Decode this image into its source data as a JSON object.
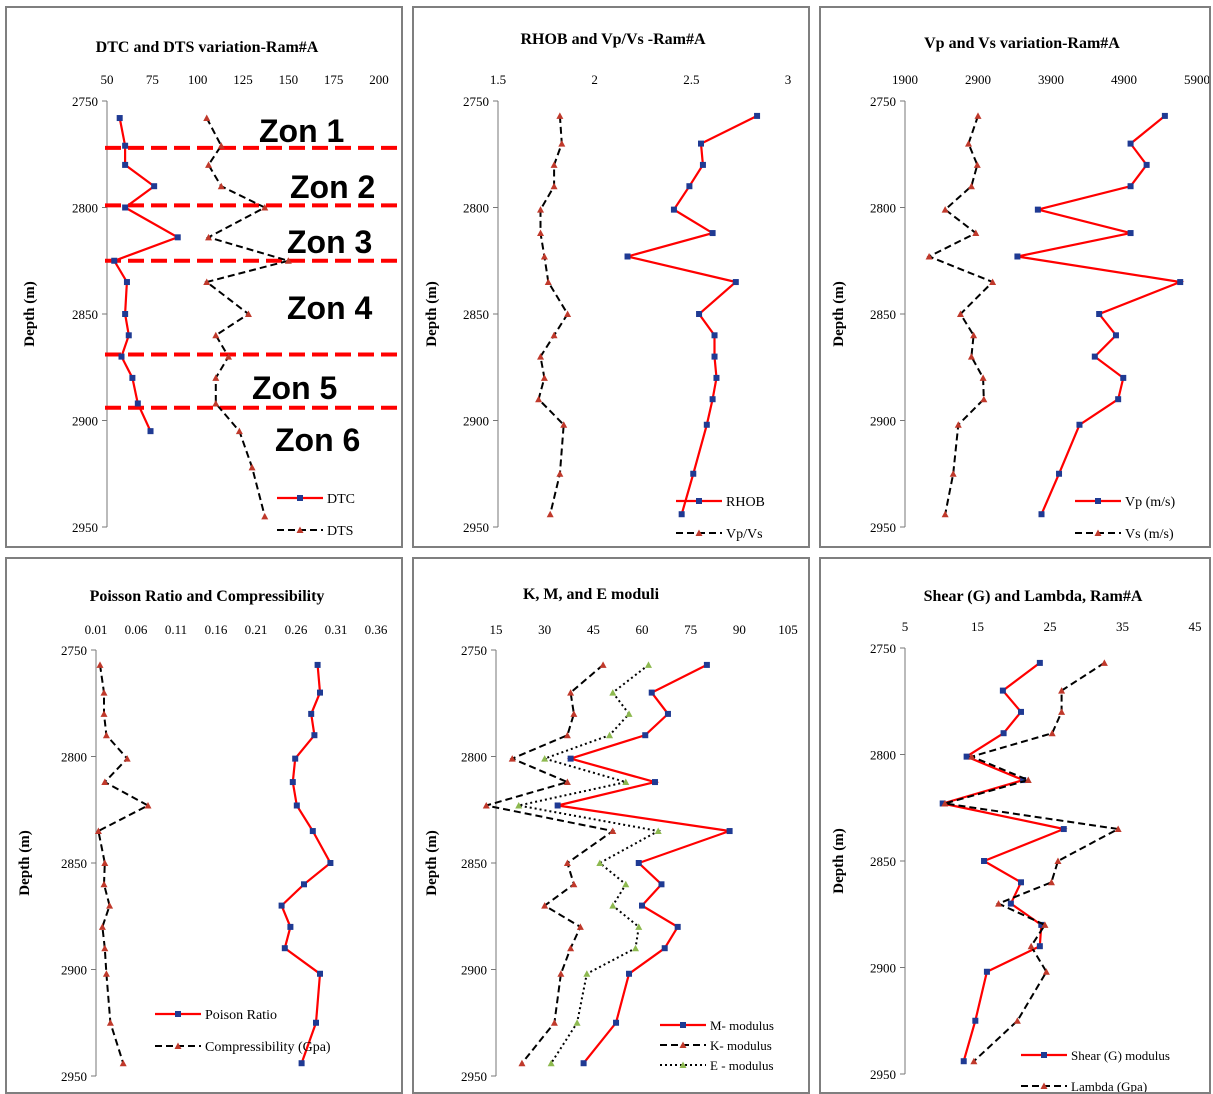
{
  "chart_data": [
    {
      "type": "line",
      "title": "DTC and DTS variation-Ram#A",
      "ylabel": "Depth    (m)",
      "xlim": [
        50,
        200
      ],
      "ylim": [
        2750,
        2950
      ],
      "x_ticks": [
        "50",
        "75",
        "100",
        "125",
        "150",
        "175",
        "200"
      ],
      "y_ticks": [
        "2750",
        "2800",
        "2850",
        "2900",
        "2950"
      ],
      "series": [
        {
          "name": "DTC",
          "color": "#ff0000",
          "style": "solid",
          "marker": "square-blue",
          "x": [
            57,
            60,
            60,
            76,
            60,
            89,
            54,
            61,
            60,
            62,
            58,
            64,
            67,
            74
          ],
          "y": [
            2758,
            2771,
            2780,
            2790,
            2800,
            2814,
            2825,
            2835,
            2850,
            2860,
            2870,
            2880,
            2892,
            2905
          ]
        },
        {
          "name": "DTS",
          "color": "#000000",
          "style": "dashed",
          "marker": "triangle-red",
          "x": [
            105,
            113,
            106,
            113,
            137,
            106,
            150,
            105,
            128,
            110,
            117,
            110,
            110,
            123,
            130,
            137
          ],
          "y": [
            2758,
            2771,
            2780,
            2790,
            2800,
            2814,
            2825,
            2835,
            2850,
            2860,
            2870,
            2880,
            2892,
            2905,
            2922,
            2945
          ]
        }
      ],
      "zone_lines_depth": [
        2772,
        2799,
        2825,
        2869,
        2894
      ],
      "zone_labels": [
        "Zon 1",
        "Zon 2",
        "Zon 3",
        "Zon 4",
        "Zon 5",
        "Zon 6"
      ],
      "legend_position": "bottom-right"
    },
    {
      "type": "line",
      "title": "RHOB and Vp/Vs -Ram#A",
      "ylabel": "Depth    (m)",
      "xlim": [
        1.5,
        3
      ],
      "ylim": [
        2750,
        2950
      ],
      "x_ticks": [
        "1.5",
        "2",
        "2.5",
        "3"
      ],
      "y_ticks": [
        "2750",
        "2800",
        "2850",
        "2900",
        "2950"
      ],
      "series": [
        {
          "name": "RHOB",
          "color": "#ff0000",
          "style": "solid",
          "marker": "square-blue",
          "x": [
            2.84,
            2.55,
            2.56,
            2.49,
            2.41,
            2.61,
            2.17,
            2.73,
            2.54,
            2.62,
            2.62,
            2.63,
            2.61,
            2.58,
            2.51,
            2.45
          ],
          "y": [
            2757,
            2770,
            2780,
            2790,
            2801,
            2812,
            2823,
            2835,
            2850,
            2860,
            2870,
            2880,
            2890,
            2902,
            2925,
            2944
          ]
        },
        {
          "name": "Vp/Vs",
          "color": "#000000",
          "style": "dashed",
          "marker": "triangle-red",
          "x": [
            1.82,
            1.83,
            1.79,
            1.79,
            1.72,
            1.72,
            1.74,
            1.76,
            1.86,
            1.79,
            1.72,
            1.74,
            1.71,
            1.84,
            1.82,
            1.77
          ],
          "y": [
            2757,
            2770,
            2780,
            2790,
            2801,
            2812,
            2823,
            2835,
            2850,
            2860,
            2870,
            2880,
            2890,
            2902,
            2925,
            2944
          ]
        }
      ],
      "legend_position": "bottom-right"
    },
    {
      "type": "line",
      "title": "Vp and Vs variation-Ram#A",
      "ylabel": "Depth    (m)",
      "xlim": [
        1900,
        5900
      ],
      "ylim": [
        2750,
        2950
      ],
      "x_ticks": [
        "1900",
        "2900",
        "3900",
        "4900",
        "5900"
      ],
      "y_ticks": [
        "2750",
        "2800",
        "2850",
        "2900",
        "2950"
      ],
      "series": [
        {
          "name": "Vp  (m/s)",
          "color": "#ff0000",
          "style": "solid",
          "marker": "square-blue",
          "x": [
            5460,
            4990,
            5210,
            4990,
            3720,
            4990,
            3440,
            5670,
            4560,
            4790,
            4500,
            4890,
            4820,
            4290,
            4010,
            3770
          ],
          "y": [
            2757,
            2770,
            2780,
            2790,
            2801,
            2812,
            2823,
            2835,
            2850,
            2860,
            2870,
            2880,
            2890,
            2902,
            2925,
            2944
          ]
        },
        {
          "name": "Vs  (m/s)",
          "color": "#000000",
          "style": "dashed",
          "marker": "triangle-red",
          "x": [
            2900,
            2770,
            2890,
            2810,
            2450,
            2870,
            2230,
            3100,
            2660,
            2840,
            2810,
            2970,
            2980,
            2630,
            2560,
            2450
          ],
          "y": [
            2757,
            2770,
            2780,
            2790,
            2801,
            2812,
            2823,
            2835,
            2850,
            2860,
            2870,
            2880,
            2890,
            2902,
            2925,
            2944
          ]
        }
      ],
      "legend_position": "bottom-right"
    },
    {
      "type": "line",
      "title": "Poisson Ratio and Compressibility",
      "ylabel": "Depth    (m)",
      "xlim": [
        0.01,
        0.36
      ],
      "ylim": [
        2750,
        2950
      ],
      "x_ticks": [
        "0.01",
        "0.06",
        "0.11",
        "0.16",
        "0.21",
        "0.26",
        "0.31",
        "0.36"
      ],
      "y_ticks": [
        "2750",
        "2800",
        "2850",
        "2900",
        "2950"
      ],
      "series": [
        {
          "name": "Poison Ratio",
          "color": "#ff0000",
          "style": "solid",
          "marker": "square-blue",
          "x": [
            0.287,
            0.29,
            0.279,
            0.283,
            0.259,
            0.256,
            0.261,
            0.281,
            0.303,
            0.27,
            0.242,
            0.253,
            0.246,
            0.29,
            0.285,
            0.267
          ],
          "y": [
            2757,
            2770,
            2780,
            2790,
            2801,
            2812,
            2823,
            2835,
            2850,
            2860,
            2870,
            2880,
            2890,
            2902,
            2925,
            2944
          ]
        },
        {
          "name": "Compressibility (Gpa)",
          "color": "#000000",
          "style": "dashed",
          "marker": "triangle-red",
          "x": [
            0.015,
            0.02,
            0.02,
            0.023,
            0.049,
            0.021,
            0.075,
            0.013,
            0.021,
            0.02,
            0.027,
            0.018,
            0.021,
            0.023,
            0.028,
            0.044
          ],
          "y": [
            2757,
            2770,
            2780,
            2790,
            2801,
            2812,
            2823,
            2835,
            2850,
            2860,
            2870,
            2880,
            2890,
            2902,
            2925,
            2944
          ]
        }
      ],
      "legend_position": "bottom"
    },
    {
      "type": "line",
      "title": "K, M, and E moduli",
      "ylabel": "Depth    (m)",
      "xlim": [
        15,
        105
      ],
      "ylim": [
        2750,
        2950
      ],
      "x_ticks": [
        "15",
        "30",
        "45",
        "60",
        "75",
        "90",
        "105"
      ],
      "y_ticks": [
        "2750",
        "2800",
        "2850",
        "2900",
        "2950"
      ],
      "series": [
        {
          "name": "M- modulus",
          "color": "#ff0000",
          "style": "solid",
          "marker": "square-blue",
          "x": [
            80,
            63,
            68,
            61,
            38,
            64,
            34,
            87,
            59,
            66,
            60,
            71,
            67,
            56,
            52,
            42
          ],
          "y": [
            2757,
            2770,
            2780,
            2790,
            2801,
            2812,
            2823,
            2835,
            2850,
            2860,
            2870,
            2880,
            2890,
            2902,
            2925,
            2944
          ]
        },
        {
          "name": "K- modulus",
          "color": "#000000",
          "style": "dashed",
          "marker": "triangle-red",
          "x": [
            48,
            38,
            39,
            37,
            20,
            37,
            12,
            51,
            37,
            39,
            30,
            41,
            38,
            35,
            33,
            23
          ],
          "y": [
            2757,
            2770,
            2780,
            2790,
            2801,
            2812,
            2823,
            2835,
            2850,
            2860,
            2870,
            2880,
            2890,
            2902,
            2925,
            2944
          ]
        },
        {
          "name": "E - modulus",
          "color": "#000000",
          "style": "dotted",
          "marker": "triangle-green",
          "x": [
            62,
            51,
            56,
            50,
            30,
            55,
            22,
            65,
            47,
            55,
            51,
            59,
            58,
            43,
            40,
            32
          ],
          "y": [
            2757,
            2770,
            2780,
            2790,
            2801,
            2812,
            2823,
            2835,
            2850,
            2860,
            2870,
            2880,
            2890,
            2902,
            2925,
            2944
          ]
        }
      ],
      "legend_position": "bottom-right"
    },
    {
      "type": "line",
      "title": "Shear (G) and Lambda, Ram#A",
      "ylabel": "Depth    (m)",
      "xlim": [
        5,
        45
      ],
      "ylim": [
        2750,
        2950
      ],
      "x_ticks": [
        "5",
        "15",
        "25",
        "35",
        "45"
      ],
      "y_ticks": [
        "2750",
        "2800",
        "2850",
        "2900",
        "2950"
      ],
      "series": [
        {
          "name": "Shear (G) modulus",
          "color": "#ff0000",
          "style": "solid",
          "marker": "square-blue",
          "x": [
            23.6,
            18.5,
            21,
            18.6,
            13.5,
            21.3,
            10.2,
            26.9,
            15.9,
            21,
            19.6,
            23.8,
            23.6,
            16.3,
            14.7,
            13.1
          ],
          "y": [
            2757,
            2770,
            2780,
            2790,
            2801,
            2812,
            2823,
            2835,
            2850,
            2860,
            2870,
            2880,
            2890,
            2902,
            2925,
            2944
          ]
        },
        {
          "name": "Lambda (Gpa)",
          "color": "#000000",
          "style": "dashed",
          "marker": "triangle-red",
          "x": [
            32.5,
            26.6,
            26.6,
            25.3,
            14.2,
            22,
            10.5,
            34.4,
            26.1,
            25.2,
            17.9,
            24.3,
            22.4,
            24.5,
            20.5,
            14.5
          ],
          "y": [
            2757,
            2770,
            2780,
            2790,
            2801,
            2812,
            2823,
            2835,
            2850,
            2860,
            2870,
            2880,
            2890,
            2902,
            2925,
            2944
          ]
        }
      ],
      "legend_position": "bottom-right"
    }
  ]
}
